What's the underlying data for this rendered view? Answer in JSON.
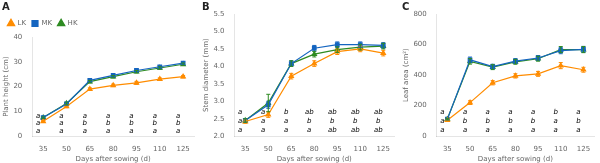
{
  "chart_data": [
    {
      "type": "line",
      "title": "A",
      "x_label": "Days after sowing (d)",
      "y_label": "Plant height (cm)",
      "x": [
        35,
        50,
        65,
        80,
        95,
        110,
        125
      ],
      "xlim": [
        28,
        132
      ],
      "xticks": [
        35,
        50,
        65,
        80,
        95,
        110,
        125
      ],
      "ylim": [
        0,
        40
      ],
      "yticks": [
        0,
        10,
        20,
        30,
        40
      ],
      "grid": false,
      "legend": "upper left",
      "series": [
        {
          "name": "LK",
          "color": "#FF8C00",
          "marker": "triangle",
          "line_style": "solid",
          "values": [
            6.0,
            12.0,
            19.0,
            20.5,
            21.5,
            23.0,
            24.0
          ],
          "errors": [
            0.3,
            0.5,
            0.5,
            0.5,
            0.6,
            0.5,
            0.5
          ],
          "sig_labels": [
            "a",
            "a",
            "a",
            "a",
            "a",
            "a",
            "a"
          ]
        },
        {
          "name": "MK",
          "color": "#1565C0",
          "marker": "square",
          "line_style": "solid",
          "values": [
            7.5,
            13.0,
            22.5,
            24.5,
            26.5,
            28.0,
            29.5
          ],
          "errors": [
            0.3,
            0.5,
            0.5,
            0.5,
            0.5,
            0.5,
            0.5
          ],
          "sig_labels": [
            "a",
            "a",
            "a",
            "a",
            "a",
            "a",
            "a"
          ]
        },
        {
          "name": "HK",
          "color": "#2E8B22",
          "marker": "triangle",
          "line_style": "solid",
          "values": [
            7.5,
            13.2,
            22.0,
            24.0,
            26.0,
            27.5,
            29.0
          ],
          "errors": [
            0.3,
            0.5,
            0.5,
            0.5,
            0.5,
            0.5,
            0.5
          ],
          "sig_labels": [
            "a",
            "a",
            "b",
            "b",
            "b",
            "b",
            "b"
          ]
        }
      ]
    },
    {
      "type": "line",
      "title": "B",
      "x_label": "Days after sowing (d)",
      "y_label": "Stem diameter (mm)",
      "x": [
        35,
        50,
        65,
        80,
        95,
        110,
        125
      ],
      "xlim": [
        28,
        132
      ],
      "xticks": [
        35,
        50,
        65,
        80,
        95,
        110,
        125
      ],
      "ylim": [
        2.0,
        5.5
      ],
      "yticks": [
        {
          "value": 2.0,
          "label": "2.0"
        },
        2.5,
        {
          "value": 3.0,
          "label": "3.0"
        },
        3.5,
        {
          "value": 4.0,
          "label": "4.0"
        },
        4.5,
        {
          "value": 5.0,
          "label": "5.0"
        },
        5.5
      ],
      "grid": false,
      "series": [
        {
          "name": "LK",
          "color": "#FF8C00",
          "marker": "triangle",
          "line_style": "solid",
          "values": [
            2.42,
            2.62,
            3.72,
            4.08,
            4.42,
            4.5,
            4.38
          ],
          "errors": [
            0.05,
            0.08,
            0.08,
            0.08,
            0.08,
            0.08,
            0.08
          ],
          "sig_labels": [
            "a",
            "a",
            "a",
            "a",
            "ab",
            "ab",
            "ab"
          ]
        },
        {
          "name": "MK",
          "color": "#1565C0",
          "marker": "square",
          "line_style": "solid",
          "values": [
            2.45,
            2.9,
            4.08,
            4.52,
            4.62,
            4.62,
            4.6
          ],
          "errors": [
            0.05,
            0.1,
            0.08,
            0.08,
            0.08,
            0.08,
            0.08
          ],
          "sig_labels": [
            "a",
            "a",
            "a",
            "ab",
            "ab",
            "ab",
            "ab"
          ]
        },
        {
          "name": "HK",
          "color": "#2E8B22",
          "marker": "triangle",
          "line_style": "solid",
          "values": [
            2.45,
            2.95,
            4.08,
            4.35,
            4.48,
            4.55,
            4.58
          ],
          "errors": [
            0.05,
            0.25,
            0.08,
            0.08,
            0.08,
            0.08,
            0.08
          ],
          "sig_labels": [
            "a",
            "a",
            "b",
            "b",
            "b",
            "b",
            "b"
          ]
        }
      ]
    },
    {
      "type": "line",
      "title": "C",
      "x_label": "Days after sowing (d)",
      "y_label": "Leaf area (cm²)",
      "x": [
        35,
        50,
        65,
        80,
        95,
        110,
        125
      ],
      "xlim": [
        28,
        132
      ],
      "xticks": [
        35,
        50,
        65,
        80,
        95,
        110,
        125
      ],
      "ylim": [
        0,
        800
      ],
      "yticks": [
        0,
        200,
        400,
        600,
        800
      ],
      "grid": false,
      "series": [
        {
          "name": "LK",
          "color": "#FF8C00",
          "marker": "triangle",
          "line_style": "solid",
          "values": [
            105,
            220,
            350,
            395,
            408,
            462,
            435
          ],
          "errors": [
            5,
            12,
            14,
            14,
            16,
            20,
            16
          ],
          "sig_labels": [
            "a",
            "a",
            "a",
            "a",
            "a",
            "a",
            "a"
          ]
        },
        {
          "name": "MK",
          "color": "#1565C0",
          "marker": "square",
          "line_style": "solid",
          "values": [
            112,
            500,
            455,
            492,
            512,
            560,
            568
          ],
          "errors": [
            5,
            18,
            16,
            16,
            16,
            20,
            20
          ],
          "sig_labels": [
            "a",
            "a",
            "a",
            "a",
            "a",
            "a",
            "a"
          ]
        },
        {
          "name": "HK",
          "color": "#2E8B22",
          "marker": "triangle",
          "line_style": "solid",
          "values": [
            112,
            490,
            452,
            487,
            507,
            567,
            567
          ],
          "errors": [
            5,
            18,
            16,
            16,
            16,
            20,
            20
          ],
          "sig_labels": [
            "a",
            "b",
            "b",
            "b",
            "b",
            "b",
            "b"
          ]
        }
      ]
    }
  ]
}
